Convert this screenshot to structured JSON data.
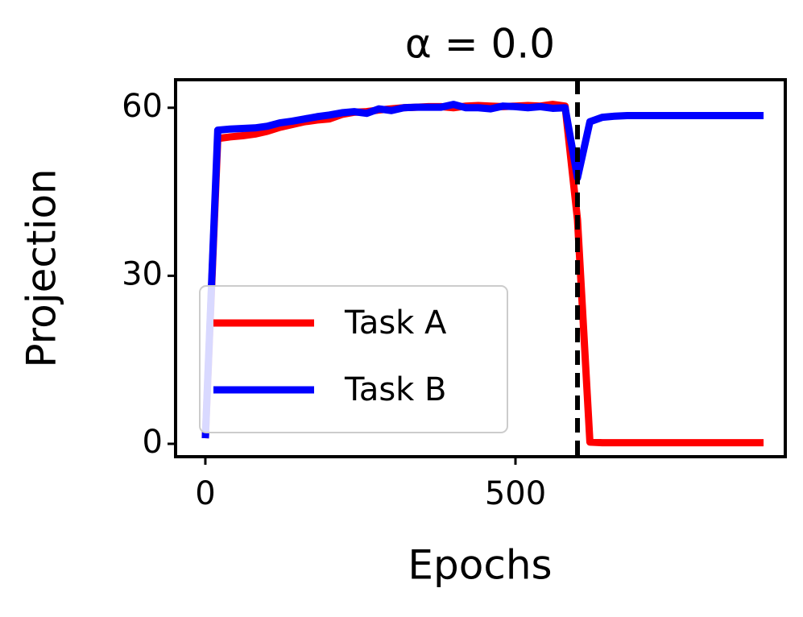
{
  "chart_data": {
    "type": "line",
    "title": "α = 0.0",
    "xlabel": "Epochs",
    "ylabel": "Projection",
    "x": [
      0,
      20,
      40,
      60,
      80,
      100,
      120,
      140,
      160,
      180,
      200,
      220,
      240,
      260,
      280,
      300,
      320,
      340,
      360,
      380,
      400,
      420,
      440,
      460,
      480,
      500,
      520,
      540,
      560,
      580,
      600,
      620,
      640,
      660,
      680,
      700,
      720,
      740,
      760,
      780,
      800,
      820,
      840,
      860,
      880,
      900
    ],
    "series": [
      {
        "name": "Task A",
        "color": "#ff0000",
        "values": [
          1,
          54.5,
          54.8,
          55,
          55.3,
          55.8,
          56.5,
          57,
          57.5,
          57.8,
          58,
          58.8,
          59.2,
          59.3,
          59.6,
          59.8,
          60,
          60.1,
          60.2,
          60.2,
          60,
          60.3,
          60.4,
          60.3,
          60.2,
          60.3,
          60.4,
          60.3,
          60.6,
          60.3,
          40,
          0.3,
          0.2,
          0.2,
          0.2,
          0.2,
          0.2,
          0.2,
          0.2,
          0.2,
          0.2,
          0.2,
          0.2,
          0.2,
          0.2,
          0.2
        ]
      },
      {
        "name": "Task B",
        "color": "#0000ff",
        "values": [
          1,
          56,
          56.2,
          56.3,
          56.4,
          56.7,
          57.3,
          57.6,
          58,
          58.4,
          58.7,
          59.1,
          59.3,
          59,
          59.8,
          59.5,
          60,
          60.1,
          60.1,
          60.1,
          60.6,
          60,
          60,
          59.8,
          60.3,
          60.2,
          60,
          60.2,
          59.9,
          60,
          47.5,
          57.5,
          58.3,
          58.5,
          58.6,
          58.6,
          58.6,
          58.6,
          58.6,
          58.6,
          58.6,
          58.6,
          58.6,
          58.6,
          58.6,
          58.6
        ]
      }
    ],
    "vlines": [
      {
        "x": 600,
        "color": "#000000",
        "style": "dashed"
      }
    ],
    "xlim": [
      -48,
      935
    ],
    "xticks": [
      0,
      500
    ],
    "ylim": [
      -2.3,
      65
    ],
    "yticks": [
      0,
      30,
      60
    ],
    "grid": false,
    "legend": "lower left"
  }
}
